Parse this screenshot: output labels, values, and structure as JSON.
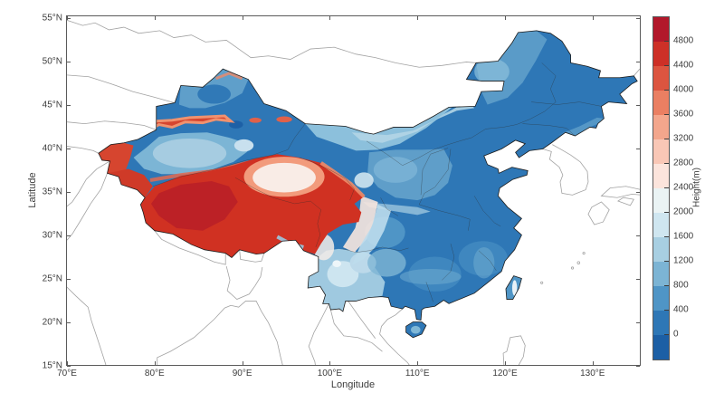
{
  "axes": {
    "xlabel": "Longitude",
    "ylabel": "Latitude",
    "x_ticks": [
      {
        "lon": 70,
        "label": "70°E"
      },
      {
        "lon": 80,
        "label": "80°E"
      },
      {
        "lon": 90,
        "label": "90°E"
      },
      {
        "lon": 100,
        "label": "100°E"
      },
      {
        "lon": 110,
        "label": "110°E"
      },
      {
        "lon": 120,
        "label": "120°E"
      },
      {
        "lon": 130,
        "label": "130°E"
      }
    ],
    "y_ticks": [
      {
        "lat": 55,
        "label": "55°N"
      },
      {
        "lat": 50,
        "label": "50°N"
      },
      {
        "lat": 45,
        "label": "45°N"
      },
      {
        "lat": 40,
        "label": "40°N"
      },
      {
        "lat": 35,
        "label": "35°N"
      },
      {
        "lat": 30,
        "label": "30°N"
      },
      {
        "lat": 25,
        "label": "25°N"
      },
      {
        "lat": 20,
        "label": "20°N"
      },
      {
        "lat": 15,
        "label": "15°N"
      }
    ]
  },
  "colorbar": {
    "label": "Height(m)",
    "tick_labels_top_to_bottom": [
      "4800",
      "4400",
      "4000",
      "3600",
      "3200",
      "2800",
      "2400",
      "2000",
      "1600",
      "1200",
      "800",
      "400",
      "0"
    ],
    "band_colors_top_to_bottom": [
      "#b2182b",
      "#cd3027",
      "#dc5540",
      "#ea7f62",
      "#f3a68c",
      "#f9c7b6",
      "#fce4dc",
      "#eaf3f4",
      "#cfe6f0",
      "#a8cfe2",
      "#7cb4d4",
      "#4f95c6",
      "#2e77b6",
      "#1c5fa5"
    ]
  }
}
